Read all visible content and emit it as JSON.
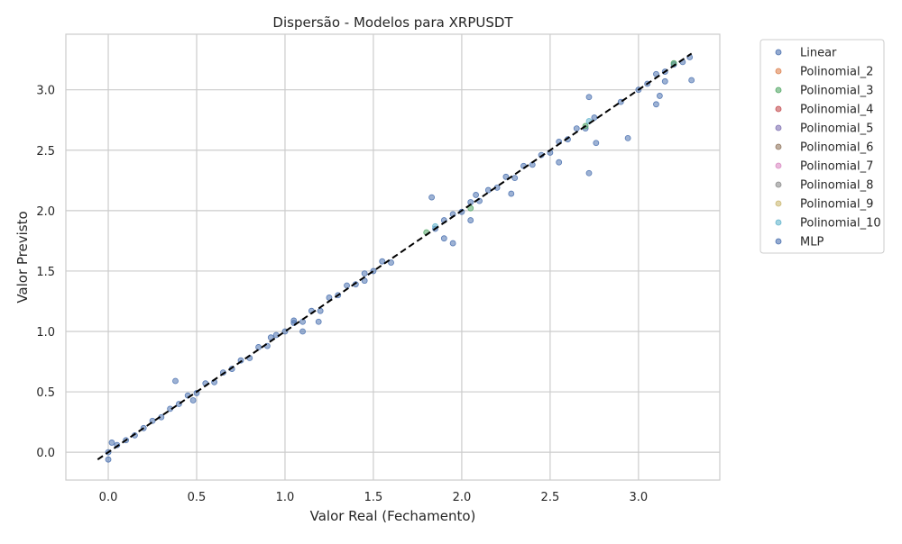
{
  "chart_data": {
    "type": "scatter",
    "title": "Dispersão - Modelos para XRPUSDT",
    "xlabel": "Valor Real (Fechamento)",
    "ylabel": "Valor Previsto",
    "xlim": [
      -0.24,
      3.46
    ],
    "ylim": [
      -0.23,
      3.46
    ],
    "xticks": [
      0.0,
      0.5,
      1.0,
      1.5,
      2.0,
      2.5,
      3.0
    ],
    "xtick_labels": [
      "0.0",
      "0.5",
      "1.0",
      "1.5",
      "2.0",
      "2.5",
      "3.0"
    ],
    "yticks": [
      0.0,
      0.5,
      1.0,
      1.5,
      2.0,
      2.5,
      3.0
    ],
    "ytick_labels": [
      "0.0",
      "0.5",
      "1.0",
      "1.5",
      "2.0",
      "2.5",
      "3.0"
    ],
    "grid": true,
    "legend_position": "outside-right",
    "reference_line": {
      "style": "dashed",
      "color": "#000000",
      "from": [
        -0.06,
        -0.06
      ],
      "to": [
        3.3,
        3.3
      ]
    },
    "series": [
      {
        "name": "Linear",
        "color": "#4c72b0",
        "points": [
          [
            0.0,
            0.0
          ],
          [
            0.02,
            0.08
          ],
          [
            0.0,
            -0.06
          ],
          [
            0.05,
            0.06
          ],
          [
            0.1,
            0.1
          ],
          [
            0.15,
            0.14
          ],
          [
            0.2,
            0.2
          ],
          [
            0.25,
            0.26
          ],
          [
            0.3,
            0.29
          ],
          [
            0.35,
            0.36
          ],
          [
            0.4,
            0.4
          ],
          [
            0.45,
            0.47
          ],
          [
            0.5,
            0.49
          ],
          [
            0.55,
            0.57
          ],
          [
            0.6,
            0.58
          ],
          [
            0.65,
            0.66
          ],
          [
            0.7,
            0.69
          ],
          [
            0.75,
            0.76
          ],
          [
            0.8,
            0.78
          ],
          [
            0.85,
            0.87
          ],
          [
            0.9,
            0.88
          ],
          [
            0.95,
            0.97
          ],
          [
            1.0,
            1.0
          ],
          [
            1.05,
            1.07
          ],
          [
            1.1,
            1.08
          ],
          [
            1.15,
            1.17
          ],
          [
            1.2,
            1.17
          ],
          [
            1.25,
            1.28
          ],
          [
            1.3,
            1.3
          ],
          [
            1.35,
            1.38
          ],
          [
            1.4,
            1.39
          ],
          [
            1.45,
            1.48
          ],
          [
            1.5,
            1.5
          ],
          [
            1.55,
            1.58
          ],
          [
            1.6,
            1.57
          ],
          [
            1.85,
            1.85
          ],
          [
            1.9,
            1.92
          ],
          [
            1.95,
            1.97
          ],
          [
            2.0,
            1.99
          ],
          [
            2.05,
            2.07
          ],
          [
            2.1,
            2.08
          ],
          [
            2.15,
            2.17
          ],
          [
            2.2,
            2.19
          ],
          [
            2.25,
            2.28
          ],
          [
            2.3,
            2.27
          ],
          [
            2.35,
            2.37
          ],
          [
            2.4,
            2.38
          ],
          [
            2.45,
            2.46
          ],
          [
            2.5,
            2.48
          ],
          [
            2.55,
            2.57
          ],
          [
            2.6,
            2.59
          ],
          [
            2.65,
            2.68
          ],
          [
            2.7,
            2.68
          ],
          [
            2.75,
            2.77
          ],
          [
            2.9,
            2.9
          ],
          [
            3.0,
            3.0
          ],
          [
            3.05,
            3.05
          ],
          [
            3.1,
            3.13
          ],
          [
            3.15,
            3.15
          ],
          [
            3.2,
            3.21
          ],
          [
            3.25,
            3.23
          ],
          [
            3.29,
            3.27
          ]
        ]
      },
      {
        "name": "Polinomial_2",
        "color": "#dd8452",
        "points": []
      },
      {
        "name": "Polinomial_3",
        "color": "#55a868",
        "points": [
          [
            1.8,
            1.82
          ],
          [
            2.05,
            2.02
          ],
          [
            2.7,
            2.7
          ],
          [
            3.2,
            3.22
          ]
        ]
      },
      {
        "name": "Polinomial_4",
        "color": "#c44e52",
        "points": []
      },
      {
        "name": "Polinomial_5",
        "color": "#8172b3",
        "points": []
      },
      {
        "name": "Polinomial_6",
        "color": "#937860",
        "points": []
      },
      {
        "name": "Polinomial_7",
        "color": "#da8bc3",
        "points": []
      },
      {
        "name": "Polinomial_8",
        "color": "#8c8c8c",
        "points": []
      },
      {
        "name": "Polinomial_9",
        "color": "#ccb974",
        "points": []
      },
      {
        "name": "Polinomial_10",
        "color": "#64b5cd",
        "points": [
          [
            1.85,
            1.87
          ],
          [
            2.72,
            2.74
          ]
        ]
      },
      {
        "name": "MLP",
        "color": "#4c72b0",
        "points": [
          [
            0.38,
            0.59
          ],
          [
            0.48,
            0.43
          ],
          [
            0.92,
            0.95
          ],
          [
            1.05,
            1.09
          ],
          [
            1.1,
            1.0
          ],
          [
            1.19,
            1.08
          ],
          [
            1.45,
            1.42
          ],
          [
            1.83,
            2.11
          ],
          [
            1.9,
            1.77
          ],
          [
            1.95,
            1.73
          ],
          [
            2.05,
            1.92
          ],
          [
            2.08,
            2.13
          ],
          [
            2.28,
            2.14
          ],
          [
            2.55,
            2.4
          ],
          [
            2.72,
            2.31
          ],
          [
            2.76,
            2.56
          ],
          [
            2.94,
            2.6
          ],
          [
            2.72,
            2.94
          ],
          [
            3.1,
            2.88
          ],
          [
            3.12,
            2.95
          ],
          [
            3.3,
            3.08
          ],
          [
            3.15,
            3.07
          ]
        ]
      }
    ]
  }
}
